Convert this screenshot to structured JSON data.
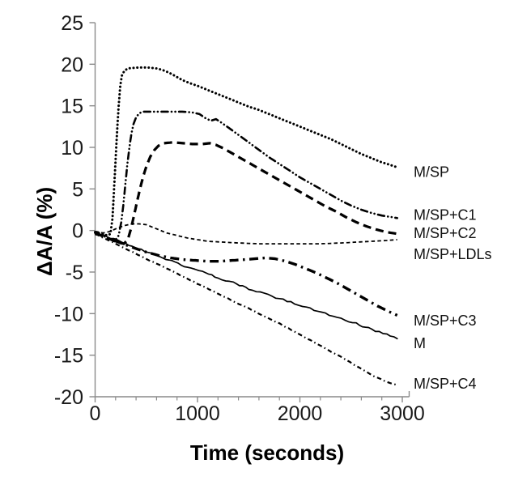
{
  "figure": {
    "background": "#ffffff",
    "axis_color": "#8a8a8a",
    "curve_color": "#000000",
    "text_color": "#000000"
  },
  "chart_data": {
    "type": "line",
    "title": "",
    "xlabel": "Time (seconds)",
    "ylabel": "ΔA/A (%)",
    "xlim": [
      0,
      3000
    ],
    "ylim": [
      -20,
      25
    ],
    "x_major_ticks": [
      0,
      1000,
      2000,
      3000
    ],
    "x_minor_tick_step": 200,
    "y_major_ticks": [
      25,
      20,
      15,
      10,
      5,
      0,
      -5,
      -10,
      -15,
      -20
    ],
    "grid": false,
    "legend_position": "labels-at-curve-ends-right",
    "series": [
      {
        "name": "M/SP",
        "label": "M/SP",
        "label_y": 7.1,
        "line_style": "dotted",
        "points": [
          [
            0,
            -0.2
          ],
          [
            70,
            -0.4
          ],
          [
            120,
            -0.6
          ],
          [
            150,
            -0.4
          ],
          [
            170,
            1.5
          ],
          [
            185,
            5
          ],
          [
            200,
            8.5
          ],
          [
            215,
            12
          ],
          [
            230,
            15
          ],
          [
            245,
            17.3
          ],
          [
            260,
            18.6
          ],
          [
            285,
            19.2
          ],
          [
            320,
            19.5
          ],
          [
            420,
            19.6
          ],
          [
            520,
            19.6
          ],
          [
            600,
            19.5
          ],
          [
            660,
            19.3
          ],
          [
            720,
            19.0
          ],
          [
            780,
            18.6
          ],
          [
            850,
            18.1
          ],
          [
            930,
            17.7
          ],
          [
            1000,
            17.4
          ],
          [
            1100,
            16.9
          ],
          [
            1200,
            16.4
          ],
          [
            1300,
            15.9
          ],
          [
            1400,
            15.4
          ],
          [
            1500,
            14.9
          ],
          [
            1600,
            14.5
          ],
          [
            1700,
            14.0
          ],
          [
            1800,
            13.5
          ],
          [
            1900,
            13.0
          ],
          [
            2000,
            12.5
          ],
          [
            2100,
            12.0
          ],
          [
            2200,
            11.5
          ],
          [
            2300,
            11.0
          ],
          [
            2400,
            10.4
          ],
          [
            2500,
            9.8
          ],
          [
            2600,
            9.2
          ],
          [
            2700,
            8.7
          ],
          [
            2800,
            8.2
          ],
          [
            2880,
            7.9
          ],
          [
            2950,
            7.6
          ]
        ]
      },
      {
        "name": "M/SP+C1",
        "label": "M/SP+C1",
        "label_y": 1.9,
        "line_style": "dash-dot-dot",
        "points": [
          [
            0,
            -0.3
          ],
          [
            90,
            -0.7
          ],
          [
            150,
            -1.1
          ],
          [
            190,
            -1.3
          ],
          [
            230,
            -0.6
          ],
          [
            255,
            1.0
          ],
          [
            275,
            3.0
          ],
          [
            295,
            5.5
          ],
          [
            315,
            8.0
          ],
          [
            335,
            10.0
          ],
          [
            355,
            11.7
          ],
          [
            375,
            12.8
          ],
          [
            400,
            13.6
          ],
          [
            430,
            14.1
          ],
          [
            470,
            14.3
          ],
          [
            560,
            14.3
          ],
          [
            700,
            14.3
          ],
          [
            850,
            14.3
          ],
          [
            950,
            14.2
          ],
          [
            1020,
            14.0
          ],
          [
            1080,
            13.5
          ],
          [
            1130,
            13.2
          ],
          [
            1180,
            13.4
          ],
          [
            1230,
            13.0
          ],
          [
            1300,
            12.4
          ],
          [
            1400,
            11.5
          ],
          [
            1500,
            10.6
          ],
          [
            1600,
            9.7
          ],
          [
            1700,
            8.8
          ],
          [
            1800,
            8.0
          ],
          [
            1900,
            7.2
          ],
          [
            2000,
            6.4
          ],
          [
            2100,
            5.7
          ],
          [
            2200,
            5.0
          ],
          [
            2300,
            4.3
          ],
          [
            2400,
            3.6
          ],
          [
            2500,
            3.0
          ],
          [
            2600,
            2.5
          ],
          [
            2700,
            2.1
          ],
          [
            2800,
            1.8
          ],
          [
            2900,
            1.6
          ],
          [
            2950,
            1.5
          ]
        ]
      },
      {
        "name": "M/SP+C2",
        "label": "M/SP+C2",
        "label_y": -0.3,
        "line_style": "long-dash-bold",
        "points": [
          [
            0,
            -0.3
          ],
          [
            100,
            -0.8
          ],
          [
            200,
            -1.3
          ],
          [
            280,
            -1.6
          ],
          [
            320,
            -1.1
          ],
          [
            350,
            0.2
          ],
          [
            380,
            1.8
          ],
          [
            410,
            3.5
          ],
          [
            440,
            5.1
          ],
          [
            470,
            6.5
          ],
          [
            500,
            7.7
          ],
          [
            540,
            8.9
          ],
          [
            580,
            9.7
          ],
          [
            620,
            10.2
          ],
          [
            670,
            10.5
          ],
          [
            760,
            10.6
          ],
          [
            860,
            10.5
          ],
          [
            950,
            10.4
          ],
          [
            1050,
            10.4
          ],
          [
            1120,
            10.5
          ],
          [
            1180,
            10.3
          ],
          [
            1250,
            9.9
          ],
          [
            1350,
            9.2
          ],
          [
            1450,
            8.5
          ],
          [
            1550,
            7.8
          ],
          [
            1650,
            7.1
          ],
          [
            1750,
            6.4
          ],
          [
            1850,
            5.7
          ],
          [
            1950,
            5.0
          ],
          [
            2050,
            4.3
          ],
          [
            2150,
            3.6
          ],
          [
            2250,
            2.9
          ],
          [
            2350,
            2.3
          ],
          [
            2450,
            1.6
          ],
          [
            2550,
            1.0
          ],
          [
            2650,
            0.5
          ],
          [
            2750,
            0.1
          ],
          [
            2850,
            -0.2
          ],
          [
            2950,
            -0.4
          ]
        ]
      },
      {
        "name": "M/SP+LDLs",
        "label": "M/SP+LDLs",
        "label_y": -2.8,
        "line_style": "short-dash-fine",
        "points": [
          [
            0,
            -0.1
          ],
          [
            80,
            -0.3
          ],
          [
            150,
            -0.1
          ],
          [
            220,
            0.3
          ],
          [
            290,
            0.6
          ],
          [
            360,
            0.8
          ],
          [
            430,
            0.8
          ],
          [
            500,
            0.7
          ],
          [
            560,
            0.4
          ],
          [
            620,
            0.1
          ],
          [
            700,
            -0.3
          ],
          [
            800,
            -0.6
          ],
          [
            900,
            -0.9
          ],
          [
            1000,
            -1.1
          ],
          [
            1100,
            -1.3
          ],
          [
            1250,
            -1.4
          ],
          [
            1400,
            -1.5
          ],
          [
            1600,
            -1.6
          ],
          [
            1800,
            -1.6
          ],
          [
            2000,
            -1.6
          ],
          [
            2200,
            -1.6
          ],
          [
            2400,
            -1.5
          ],
          [
            2550,
            -1.4
          ],
          [
            2700,
            -1.3
          ],
          [
            2850,
            -1.2
          ],
          [
            2950,
            -1.1
          ]
        ]
      },
      {
        "name": "M/SP+C3",
        "label": "M/SP+C3",
        "label_y": -10.8,
        "line_style": "dash-dot-bold",
        "points": [
          [
            0,
            -0.3
          ],
          [
            120,
            -0.9
          ],
          [
            250,
            -1.5
          ],
          [
            380,
            -2.1
          ],
          [
            500,
            -2.6
          ],
          [
            620,
            -3.0
          ],
          [
            740,
            -3.3
          ],
          [
            860,
            -3.5
          ],
          [
            980,
            -3.6
          ],
          [
            1100,
            -3.7
          ],
          [
            1220,
            -3.7
          ],
          [
            1340,
            -3.6
          ],
          [
            1460,
            -3.5
          ],
          [
            1560,
            -3.4
          ],
          [
            1660,
            -3.3
          ],
          [
            1760,
            -3.4
          ],
          [
            1860,
            -3.7
          ],
          [
            1960,
            -4.1
          ],
          [
            2060,
            -4.6
          ],
          [
            2160,
            -5.1
          ],
          [
            2260,
            -5.7
          ],
          [
            2360,
            -6.3
          ],
          [
            2460,
            -7.0
          ],
          [
            2560,
            -7.7
          ],
          [
            2660,
            -8.4
          ],
          [
            2760,
            -9.1
          ],
          [
            2860,
            -9.7
          ],
          [
            2950,
            -10.2
          ]
        ]
      },
      {
        "name": "M",
        "label": "M",
        "label_y": -13.5,
        "line_style": "solid-noisy",
        "points": [
          [
            0,
            -0.2
          ],
          [
            150,
            -0.9
          ],
          [
            300,
            -1.6
          ],
          [
            450,
            -2.3
          ],
          [
            600,
            -3.0
          ],
          [
            750,
            -3.7
          ],
          [
            900,
            -4.4
          ],
          [
            1050,
            -5.0
          ],
          [
            1200,
            -5.7
          ],
          [
            1350,
            -6.3
          ],
          [
            1500,
            -7.0
          ],
          [
            1650,
            -7.6
          ],
          [
            1800,
            -8.2
          ],
          [
            1950,
            -8.8
          ],
          [
            2100,
            -9.4
          ],
          [
            2250,
            -10.0
          ],
          [
            2400,
            -10.6
          ],
          [
            2550,
            -11.2
          ],
          [
            2700,
            -11.9
          ],
          [
            2850,
            -12.5
          ],
          [
            2950,
            -13.0
          ]
        ]
      },
      {
        "name": "M/SP+C4",
        "label": "M/SP+C4",
        "label_y": -18.4,
        "line_style": "dash-dot-fine",
        "points": [
          [
            0,
            -0.4
          ],
          [
            150,
            -1.3
          ],
          [
            300,
            -2.2
          ],
          [
            450,
            -3.1
          ],
          [
            600,
            -4.0
          ],
          [
            750,
            -4.9
          ],
          [
            900,
            -5.8
          ],
          [
            1050,
            -6.7
          ],
          [
            1200,
            -7.6
          ],
          [
            1350,
            -8.5
          ],
          [
            1500,
            -9.4
          ],
          [
            1650,
            -10.3
          ],
          [
            1800,
            -11.2
          ],
          [
            1950,
            -12.2
          ],
          [
            2100,
            -13.2
          ],
          [
            2250,
            -14.2
          ],
          [
            2400,
            -15.2
          ],
          [
            2550,
            -16.3
          ],
          [
            2700,
            -17.4
          ],
          [
            2850,
            -18.2
          ],
          [
            2950,
            -18.6
          ]
        ]
      }
    ]
  }
}
